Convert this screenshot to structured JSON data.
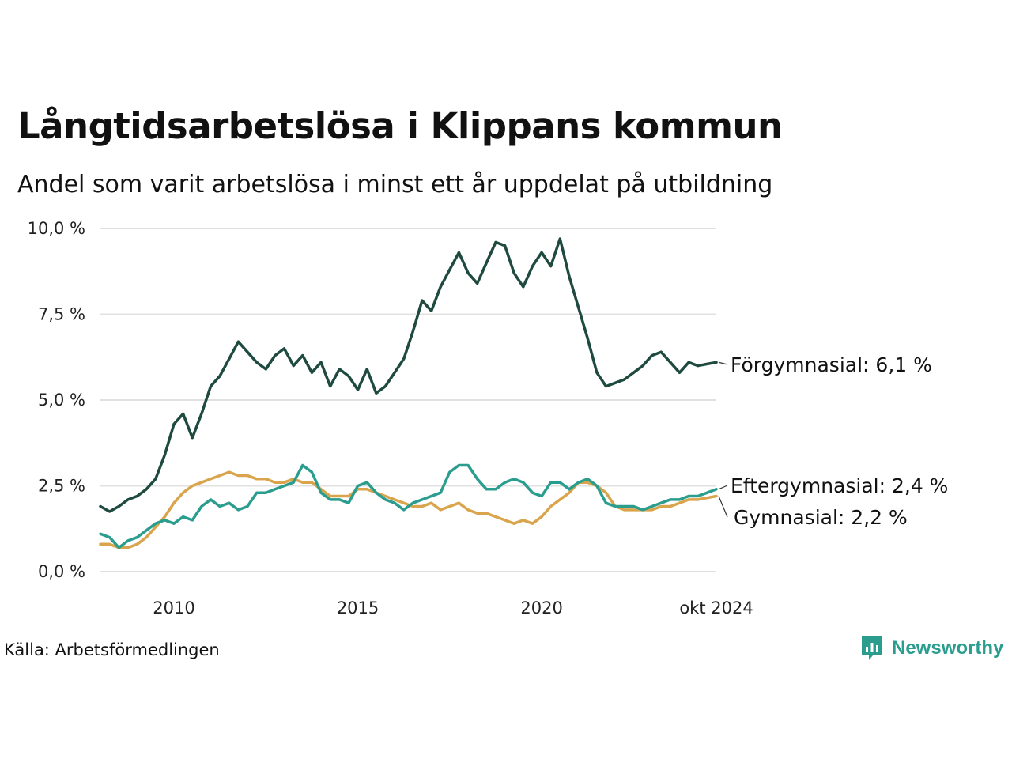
{
  "header": {
    "title": "Långtidsarbetslösa i Klippans kommun",
    "subtitle": "Andel som varit arbetslösa i minst ett år uppdelat på utbildning"
  },
  "footer": {
    "source": "Källa: Arbetsförmedlingen",
    "brand": "Newsworthy",
    "brand_color": "#2a9d8f"
  },
  "chart_data": {
    "type": "line",
    "title": "Långtidsarbetslösa i Klippans kommun",
    "subtitle": "Andel som varit arbetslösa i minst ett år uppdelat på utbildning",
    "x_range": [
      "2008-01",
      "2024-10"
    ],
    "x_ticks": [
      {
        "value": 2010.0,
        "label": "2010"
      },
      {
        "value": 2015.0,
        "label": "2015"
      },
      {
        "value": 2020.0,
        "label": "2020"
      },
      {
        "value": 2024.75,
        "label": "okt 2024"
      }
    ],
    "y_ticks": [
      {
        "value": 0,
        "label": "0,0 %"
      },
      {
        "value": 2.5,
        "label": "2,5 %"
      },
      {
        "value": 5,
        "label": "5,0 %"
      },
      {
        "value": 7.5,
        "label": "7,5 %"
      },
      {
        "value": 10,
        "label": "10,0 %"
      }
    ],
    "ylim": [
      0,
      10
    ],
    "grid": "horizontal",
    "legend": "end-labels-right",
    "series": [
      {
        "name": "Förgymnasial",
        "end_label": "Förgymnasial: 6,1 %",
        "color": "#1f4a40",
        "x": [
          2008.0,
          2008.25,
          2008.5,
          2008.75,
          2009.0,
          2009.25,
          2009.5,
          2009.75,
          2010.0,
          2010.25,
          2010.5,
          2010.75,
          2011.0,
          2011.25,
          2011.5,
          2011.75,
          2012.0,
          2012.25,
          2012.5,
          2012.75,
          2013.0,
          2013.25,
          2013.5,
          2013.75,
          2014.0,
          2014.25,
          2014.5,
          2014.75,
          2015.0,
          2015.25,
          2015.5,
          2015.75,
          2016.0,
          2016.25,
          2016.5,
          2016.75,
          2017.0,
          2017.25,
          2017.5,
          2017.75,
          2018.0,
          2018.25,
          2018.5,
          2018.75,
          2019.0,
          2019.25,
          2019.5,
          2019.75,
          2020.0,
          2020.25,
          2020.5,
          2020.75,
          2021.0,
          2021.25,
          2021.5,
          2021.75,
          2022.0,
          2022.25,
          2022.5,
          2022.75,
          2023.0,
          2023.25,
          2023.5,
          2023.75,
          2024.0,
          2024.25,
          2024.5,
          2024.75
        ],
        "values": [
          1.9,
          1.75,
          1.9,
          2.1,
          2.2,
          2.4,
          2.7,
          3.4,
          4.3,
          4.6,
          3.9,
          4.6,
          5.4,
          5.7,
          6.2,
          6.7,
          6.4,
          6.1,
          5.9,
          6.3,
          6.5,
          6.0,
          6.3,
          5.8,
          6.1,
          5.4,
          5.9,
          5.7,
          5.3,
          5.9,
          5.2,
          5.4,
          5.8,
          6.2,
          7.0,
          7.9,
          7.6,
          8.3,
          8.8,
          9.3,
          8.7,
          8.4,
          9.0,
          9.6,
          9.5,
          8.7,
          8.3,
          8.9,
          9.3,
          8.9,
          9.7,
          8.6,
          7.7,
          6.8,
          5.8,
          5.4,
          5.5,
          5.6,
          5.8,
          6.0,
          6.3,
          6.4,
          6.1,
          5.8,
          6.1,
          6.0,
          6.05,
          6.1
        ]
      },
      {
        "name": "Eftergymnasial",
        "end_label": "Eftergymnasial: 2,4 %",
        "color": "#2a9d8f",
        "x": [
          2008.0,
          2008.25,
          2008.5,
          2008.75,
          2009.0,
          2009.25,
          2009.5,
          2009.75,
          2010.0,
          2010.25,
          2010.5,
          2010.75,
          2011.0,
          2011.25,
          2011.5,
          2011.75,
          2012.0,
          2012.25,
          2012.5,
          2012.75,
          2013.0,
          2013.25,
          2013.5,
          2013.75,
          2014.0,
          2014.25,
          2014.5,
          2014.75,
          2015.0,
          2015.25,
          2015.5,
          2015.75,
          2016.0,
          2016.25,
          2016.5,
          2016.75,
          2017.0,
          2017.25,
          2017.5,
          2017.75,
          2018.0,
          2018.25,
          2018.5,
          2018.75,
          2019.0,
          2019.25,
          2019.5,
          2019.75,
          2020.0,
          2020.25,
          2020.5,
          2020.75,
          2021.0,
          2021.25,
          2021.5,
          2021.75,
          2022.0,
          2022.25,
          2022.5,
          2022.75,
          2023.0,
          2023.25,
          2023.5,
          2023.75,
          2024.0,
          2024.25,
          2024.5,
          2024.75
        ],
        "values": [
          1.1,
          1.0,
          0.7,
          0.9,
          1.0,
          1.2,
          1.4,
          1.5,
          1.4,
          1.6,
          1.5,
          1.9,
          2.1,
          1.9,
          2.0,
          1.8,
          1.9,
          2.3,
          2.3,
          2.4,
          2.5,
          2.6,
          3.1,
          2.9,
          2.3,
          2.1,
          2.1,
          2.0,
          2.5,
          2.6,
          2.3,
          2.1,
          2.0,
          1.8,
          2.0,
          2.1,
          2.2,
          2.3,
          2.9,
          3.1,
          3.1,
          2.7,
          2.4,
          2.4,
          2.6,
          2.7,
          2.6,
          2.3,
          2.2,
          2.6,
          2.6,
          2.4,
          2.6,
          2.7,
          2.5,
          2.0,
          1.9,
          1.9,
          1.9,
          1.8,
          1.9,
          2.0,
          2.1,
          2.1,
          2.2,
          2.2,
          2.3,
          2.4
        ]
      },
      {
        "name": "Gymnasial",
        "end_label": "Gymnasial: 2,2 %",
        "color": "#d9a44c",
        "x": [
          2008.0,
          2008.25,
          2008.5,
          2008.75,
          2009.0,
          2009.25,
          2009.5,
          2009.75,
          2010.0,
          2010.25,
          2010.5,
          2010.75,
          2011.0,
          2011.25,
          2011.5,
          2011.75,
          2012.0,
          2012.25,
          2012.5,
          2012.75,
          2013.0,
          2013.25,
          2013.5,
          2013.75,
          2014.0,
          2014.25,
          2014.5,
          2014.75,
          2015.0,
          2015.25,
          2015.5,
          2015.75,
          2016.0,
          2016.25,
          2016.5,
          2016.75,
          2017.0,
          2017.25,
          2017.5,
          2017.75,
          2018.0,
          2018.25,
          2018.5,
          2018.75,
          2019.0,
          2019.25,
          2019.5,
          2019.75,
          2020.0,
          2020.25,
          2020.5,
          2020.75,
          2021.0,
          2021.25,
          2021.5,
          2021.75,
          2022.0,
          2022.25,
          2022.5,
          2022.75,
          2023.0,
          2023.25,
          2023.5,
          2023.75,
          2024.0,
          2024.25,
          2024.5,
          2024.75
        ],
        "values": [
          0.8,
          0.8,
          0.7,
          0.7,
          0.8,
          1.0,
          1.3,
          1.6,
          2.0,
          2.3,
          2.5,
          2.6,
          2.7,
          2.8,
          2.9,
          2.8,
          2.8,
          2.7,
          2.7,
          2.6,
          2.6,
          2.7,
          2.6,
          2.6,
          2.4,
          2.2,
          2.2,
          2.2,
          2.4,
          2.4,
          2.3,
          2.2,
          2.1,
          2.0,
          1.9,
          1.9,
          2.0,
          1.8,
          1.9,
          2.0,
          1.8,
          1.7,
          1.7,
          1.6,
          1.5,
          1.4,
          1.5,
          1.4,
          1.6,
          1.9,
          2.1,
          2.3,
          2.6,
          2.6,
          2.5,
          2.3,
          1.9,
          1.8,
          1.8,
          1.8,
          1.8,
          1.9,
          1.9,
          2.0,
          2.1,
          2.1,
          2.15,
          2.2
        ]
      }
    ]
  }
}
